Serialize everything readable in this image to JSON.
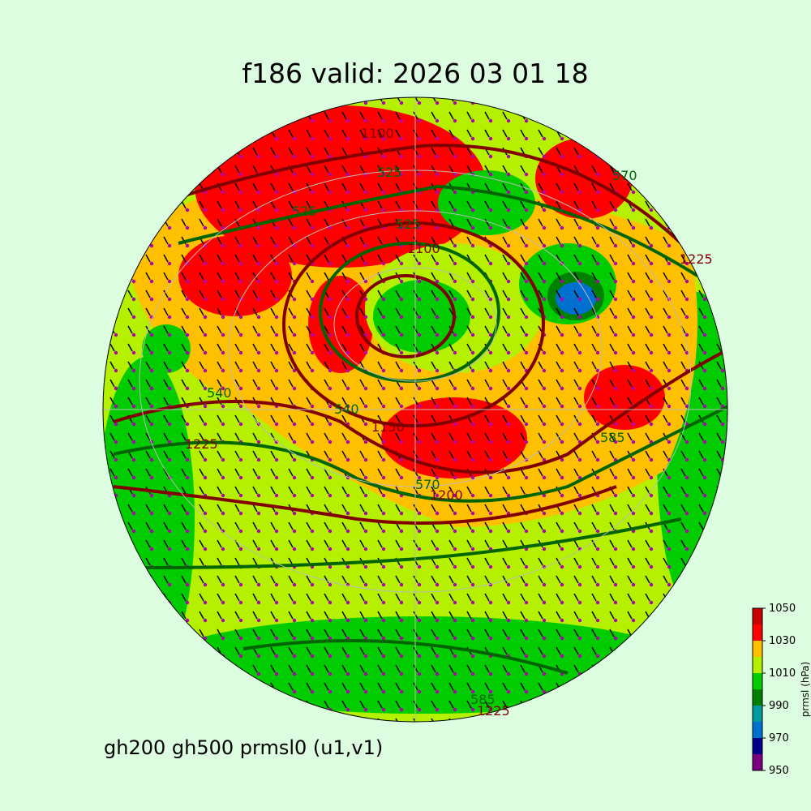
{
  "title": "f186 valid:   2026 03 01 18",
  "footer": "gh200 gh500 prmsl0 (u1,v1)",
  "contour_labels": [
    "1100",
    "525",
    "525",
    "525",
    "1100",
    "540",
    "1150",
    "570",
    "1200",
    "1225",
    "1225",
    "585",
    "585",
    "1225",
    "570",
    "540"
  ],
  "colorbar": {
    "label": "prmsl (hPa)",
    "lim": [
      950,
      1050
    ],
    "ticks": [
      950,
      970,
      990,
      1010,
      1030,
      1050
    ],
    "colors": [
      "#7b0080",
      "#00008b",
      "#0070d0",
      "#009aa0",
      "#008000",
      "#00cc00",
      "#b4f000",
      "#ffc000",
      "#ff0000",
      "#c80000"
    ]
  }
}
